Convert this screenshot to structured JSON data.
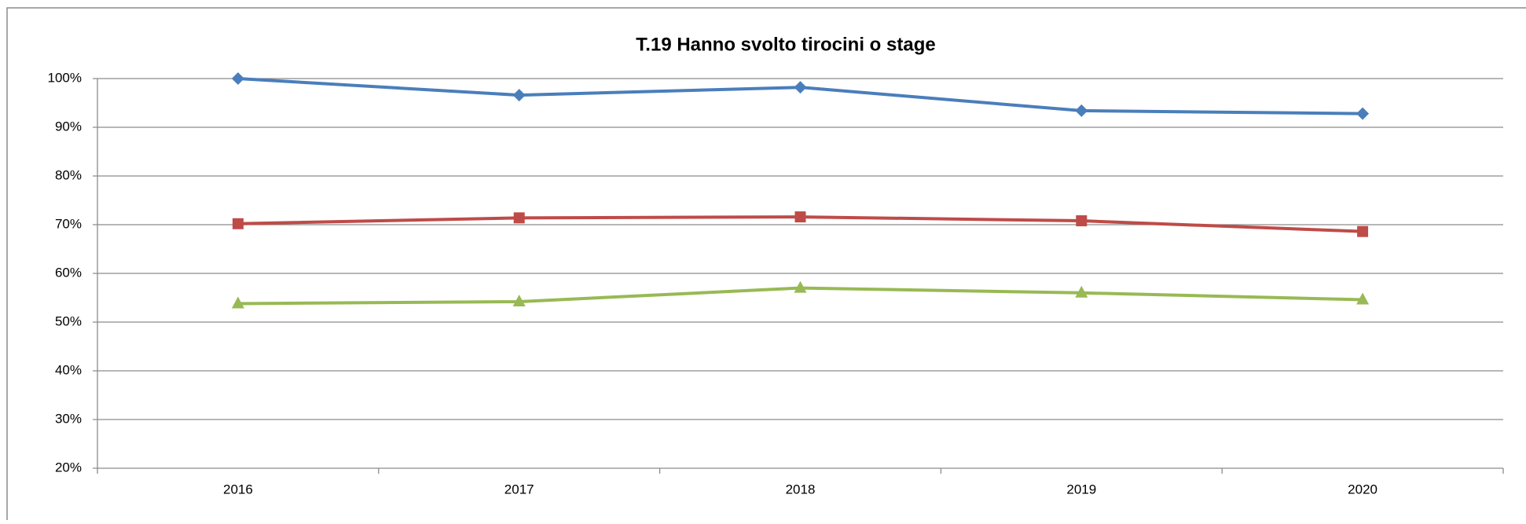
{
  "chart_data": {
    "type": "line",
    "title": "T.19 Hanno svolto tirocini o stage",
    "categories": [
      "2016",
      "2017",
      "2018",
      "2019",
      "2020"
    ],
    "series": [
      {
        "color": "#4a7ebb",
        "marker": "diamond",
        "values": [
          100,
          96.6,
          98.2,
          93.4,
          92.8
        ]
      },
      {
        "color": "#be4b48",
        "marker": "square",
        "values": [
          70.2,
          71.4,
          71.6,
          70.8,
          68.6
        ]
      },
      {
        "color": "#98b954",
        "marker": "triangle",
        "values": [
          53.8,
          54.2,
          57.0,
          56.0,
          54.6
        ]
      }
    ],
    "ylim": [
      20,
      100
    ],
    "yticks": [
      {
        "value": 20,
        "label": "20%"
      },
      {
        "value": 30,
        "label": "30%"
      },
      {
        "value": 40,
        "label": "40%"
      },
      {
        "value": 50,
        "label": "50%"
      },
      {
        "value": 60,
        "label": "60%"
      },
      {
        "value": 70,
        "label": "70%"
      },
      {
        "value": 80,
        "label": "80%"
      },
      {
        "value": 90,
        "label": "90%"
      },
      {
        "value": 100,
        "label": "100%"
      }
    ],
    "grid": true
  }
}
